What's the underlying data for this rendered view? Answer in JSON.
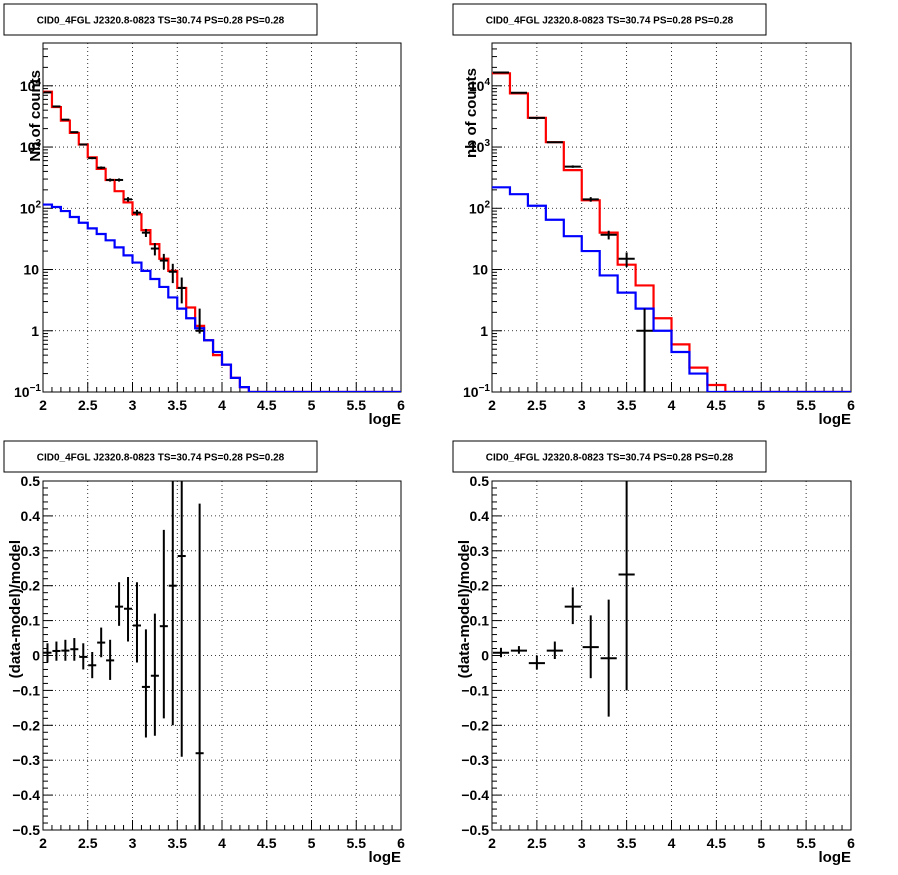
{
  "chart_data": [
    {
      "type": "line",
      "panel": "top-left",
      "title": "CID0_4FGL J2320.8-0823 TS=30.74 PS=0.28 PS=0.28",
      "xlabel": "logE",
      "ylabel": "Nb of counts",
      "xlim": [
        2,
        6
      ],
      "ylim": [
        0.1,
        50000
      ],
      "yscale": "log",
      "grid": true,
      "xticks": [
        "2",
        "2.5",
        "3",
        "3.5",
        "4",
        "4.5",
        "5",
        "5.5",
        "6"
      ],
      "yticks": [
        {
          "v": 0.1,
          "t": "10",
          "sup": "−1"
        },
        {
          "v": 1,
          "t": "1"
        },
        {
          "v": 10,
          "t": "10"
        },
        {
          "v": 100,
          "t": "10",
          "sup": "2"
        },
        {
          "v": 1000,
          "t": "10",
          "sup": "3"
        },
        {
          "v": 10000,
          "t": "10",
          "sup": "4"
        }
      ],
      "bin_edges": [
        2,
        2.1,
        2.2,
        2.3,
        2.4,
        2.5,
        2.6,
        2.7,
        2.8,
        2.9,
        3,
        3.1,
        3.2,
        3.3,
        3.4,
        3.5,
        3.6,
        3.7,
        3.8,
        3.9,
        4,
        4.1,
        4.2,
        4.3,
        4.4,
        4.5,
        4.6,
        4.7,
        4.8,
        4.9,
        5,
        5.1,
        5.2,
        5.3,
        5.4,
        5.5,
        5.6,
        5.7,
        5.8,
        5.9,
        6
      ],
      "series": [
        {
          "color": "#ff0000",
          "style": "hist",
          "values": [
            8000,
            4500,
            2700,
            1700,
            1100,
            680,
            440,
            290,
            190,
            125,
            80,
            44,
            26,
            15,
            9.5,
            5,
            2.4,
            1.2,
            0.7,
            0.4,
            0.28,
            0.17,
            0.12,
            0.1,
            0.1,
            0.1,
            0.1,
            0.1,
            0.1,
            0.1,
            0.1,
            0.1,
            0.1,
            0.1,
            0.1,
            0.1,
            0.1,
            0.1,
            0.1,
            0.1
          ]
        },
        {
          "color": "#0000ff",
          "style": "hist",
          "values": [
            115,
            105,
            90,
            72,
            58,
            47,
            38,
            30,
            23,
            17,
            13,
            9.5,
            7,
            5.2,
            3.5,
            2.3,
            1.6,
            1.1,
            0.7,
            0.45,
            0.28,
            0.17,
            0.12,
            0.1,
            0.1,
            0.1,
            0.1,
            0.1,
            0.1,
            0.1,
            0.1,
            0.1,
            0.1,
            0.1,
            0.1,
            0.1,
            0.1,
            0.1,
            0.1,
            0.1
          ]
        }
      ],
      "points": {
        "color": "#000000",
        "x": [
          2.05,
          2.15,
          2.25,
          2.35,
          2.45,
          2.55,
          2.65,
          2.75,
          2.85,
          2.95,
          3.05,
          3.15,
          3.25,
          3.35,
          3.45,
          3.55,
          3.75
        ],
        "y": [
          7800,
          4600,
          2800,
          1750,
          1100,
          660,
          460,
          290,
          290,
          140,
          85,
          40,
          22,
          14,
          9.2,
          5,
          1
        ],
        "err_lo": [
          7700,
          4530,
          2745,
          1708,
          1066,
          634,
          438,
          273,
          273,
          128,
          76,
          34,
          17,
          10,
          6,
          2.8,
          0.9
        ],
        "err_hi": [
          7900,
          4670,
          2855,
          1792,
          1134,
          686,
          482,
          307,
          307,
          152,
          94,
          46,
          27,
          18,
          12.4,
          7.4,
          2.3
        ]
      }
    },
    {
      "type": "line",
      "panel": "top-right",
      "title": "CID0_4FGL J2320.8-0823 TS=30.74 PS=0.28 PS=0.28",
      "xlabel": "logE",
      "ylabel": "nb of counts",
      "xlim": [
        2,
        6
      ],
      "ylim": [
        0.1,
        50000
      ],
      "yscale": "log",
      "grid": true,
      "xticks": [
        "2",
        "2.5",
        "3",
        "3.5",
        "4",
        "4.5",
        "5",
        "5.5",
        "6"
      ],
      "yticks": [
        {
          "v": 0.1,
          "t": "10",
          "sup": "−1"
        },
        {
          "v": 1,
          "t": "1"
        },
        {
          "v": 10,
          "t": "10"
        },
        {
          "v": 100,
          "t": "10",
          "sup": "2"
        },
        {
          "v": 1000,
          "t": "10",
          "sup": "3"
        },
        {
          "v": 10000,
          "t": "10",
          "sup": "4"
        }
      ],
      "bin_edges": [
        2,
        2.2,
        2.4,
        2.6,
        2.8,
        3,
        3.2,
        3.4,
        3.6,
        3.8,
        4,
        4.2,
        4.4,
        4.6,
        4.8,
        5,
        5.2,
        5.4,
        5.6,
        5.8,
        6
      ],
      "series": [
        {
          "color": "#ff0000",
          "style": "hist",
          "values": [
            16000,
            7500,
            3000,
            1200,
            420,
            135,
            40,
            12,
            5.5,
            1.6,
            0.6,
            0.25,
            0.13,
            0.1,
            0.1,
            0.1,
            0.1,
            0.1,
            0.1,
            0.1
          ]
        },
        {
          "color": "#0000ff",
          "style": "hist",
          "values": [
            220,
            170,
            110,
            65,
            35,
            20,
            8,
            4.2,
            2.3,
            1,
            0.45,
            0.2,
            0.1,
            0.1,
            0.1,
            0.1,
            0.1,
            0.1,
            0.1,
            0.1
          ]
        }
      ],
      "points": {
        "color": "#000000",
        "x": [
          2.1,
          2.3,
          2.5,
          2.7,
          2.9,
          3.1,
          3.3,
          3.5,
          3.7
        ],
        "y": [
          16500,
          7700,
          3000,
          1200,
          480,
          140,
          37,
          15,
          1
        ],
        "err_lo": [
          16370,
          7610,
          2945,
          1165,
          458,
          128,
          31,
          11,
          0.1
        ],
        "err_hi": [
          16630,
          7790,
          3055,
          1235,
          502,
          152,
          43,
          19,
          2.3
        ]
      }
    },
    {
      "type": "scatter",
      "panel": "bottom-left",
      "title": "CID0_4FGL J2320.8-0823 TS=30.74 PS=0.28 PS=0.28",
      "xlabel": "logE",
      "ylabel": "(data-model)/model",
      "xlim": [
        2,
        6
      ],
      "ylim": [
        -0.5,
        0.5
      ],
      "grid": true,
      "xticks": [
        "2",
        "2.5",
        "3",
        "3.5",
        "4",
        "4.5",
        "5",
        "5.5",
        "6"
      ],
      "yticks": [
        "−0.5",
        "−0.4",
        "−0.3",
        "−0.2",
        "−0.1",
        "0",
        "0.1",
        "0.2",
        "0.3",
        "0.4",
        "0.5"
      ],
      "points": {
        "color": "#000000",
        "x": [
          2.05,
          2.15,
          2.25,
          2.35,
          2.45,
          2.55,
          2.65,
          2.75,
          2.85,
          2.95,
          3.05,
          3.15,
          3.25,
          3.35,
          3.45,
          3.55,
          3.75
        ],
        "y": [
          0.008,
          0.013,
          0.014,
          0.018,
          -0.004,
          -0.028,
          0.037,
          -0.014,
          0.14,
          0.134,
          0.086,
          -0.09,
          -0.058,
          0.084,
          0.2,
          0.285,
          -0.28
        ],
        "err_lo": [
          -0.02,
          -0.015,
          -0.015,
          -0.015,
          -0.04,
          -0.065,
          -0.005,
          -0.07,
          0.085,
          0.04,
          -0.02,
          -0.235,
          -0.23,
          -0.18,
          -0.2,
          -0.29,
          -0.5
        ],
        "err_hi": [
          0.035,
          0.04,
          0.045,
          0.05,
          0.035,
          0.01,
          0.08,
          0.045,
          0.21,
          0.225,
          0.21,
          0.075,
          0.12,
          0.36,
          0.5,
          0.5,
          0.435
        ]
      }
    },
    {
      "type": "scatter",
      "panel": "bottom-right",
      "title": "CID0_4FGL J2320.8-0823 TS=30.74 PS=0.28 PS=0.28",
      "xlabel": "logE",
      "ylabel": "(data-model)/model",
      "xlim": [
        2,
        6
      ],
      "ylim": [
        -0.5,
        0.5
      ],
      "grid": true,
      "xticks": [
        "2",
        "2.5",
        "3",
        "3.5",
        "4",
        "4.5",
        "5",
        "5.5",
        "6"
      ],
      "yticks": [
        "−0.5",
        "−0.4",
        "−0.3",
        "−0.2",
        "−0.1",
        "0",
        "0.1",
        "0.2",
        "0.3",
        "0.4",
        "0.5"
      ],
      "points": {
        "color": "#000000",
        "x": [
          2.1,
          2.3,
          2.5,
          2.7,
          2.9,
          3.1,
          3.3,
          3.5
        ],
        "y": [
          0.008,
          0.014,
          -0.022,
          0.014,
          0.14,
          0.024,
          -0.008,
          0.232
        ],
        "err_lo": [
          -0.005,
          0.005,
          -0.04,
          -0.01,
          0.09,
          -0.065,
          -0.175,
          -0.1
        ],
        "err_hi": [
          0.022,
          0.027,
          0.0,
          0.04,
          0.195,
          0.115,
          0.16,
          0.5
        ]
      }
    }
  ]
}
